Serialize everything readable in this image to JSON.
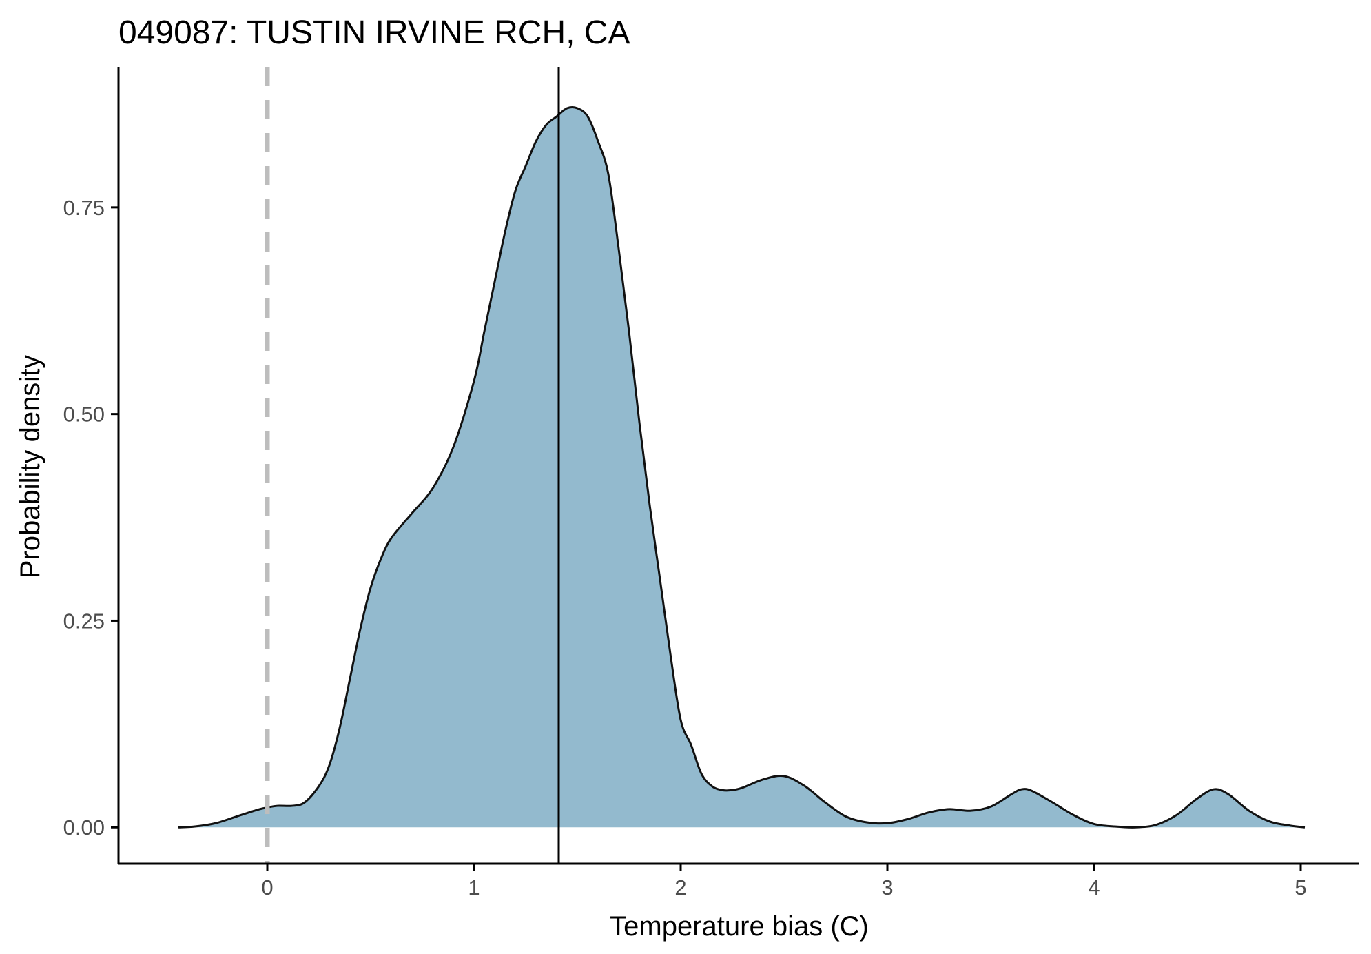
{
  "chart_data": {
    "type": "area",
    "title": "049087: TUSTIN IRVINE RCH, CA",
    "xlabel": "Temperature bias (C)",
    "ylabel": "Probability density",
    "xlim": [
      -0.72,
      5.28
    ],
    "ylim": [
      -0.044,
      0.92
    ],
    "x_ticks": [
      0,
      1,
      2,
      3,
      4,
      5
    ],
    "x_tick_labels": [
      "0",
      "1",
      "2",
      "3",
      "4",
      "5"
    ],
    "y_ticks": [
      0,
      0.25,
      0.5,
      0.75
    ],
    "y_tick_labels": [
      "0.00",
      "0.25",
      "0.50",
      "0.75"
    ],
    "grid": false,
    "legend": "none",
    "reference_line_x": 0,
    "mean_line_x": 1.41,
    "series": [
      {
        "x": [
          -0.43,
          -0.35,
          -0.25,
          -0.15,
          -0.05,
          0.0,
          0.05,
          0.12,
          0.18,
          0.25,
          0.3,
          0.35,
          0.4,
          0.45,
          0.5,
          0.55,
          0.6,
          0.7,
          0.8,
          0.9,
          1.0,
          1.05,
          1.1,
          1.15,
          1.2,
          1.25,
          1.3,
          1.35,
          1.4,
          1.45,
          1.5,
          1.55,
          1.6,
          1.65,
          1.7,
          1.75,
          1.8,
          1.85,
          1.9,
          1.95,
          2.0,
          2.05,
          2.1,
          2.15,
          2.2,
          2.25,
          2.3,
          2.4,
          2.5,
          2.6,
          2.7,
          2.8,
          2.9,
          3.0,
          3.1,
          3.2,
          3.3,
          3.4,
          3.5,
          3.6,
          3.65,
          3.7,
          3.8,
          3.9,
          4.0,
          4.1,
          4.2,
          4.3,
          4.4,
          4.5,
          4.58,
          4.65,
          4.75,
          4.85,
          4.95,
          5.02
        ],
        "y": [
          0.0,
          0.001,
          0.005,
          0.013,
          0.021,
          0.024,
          0.026,
          0.026,
          0.03,
          0.05,
          0.075,
          0.12,
          0.18,
          0.24,
          0.29,
          0.325,
          0.35,
          0.38,
          0.41,
          0.46,
          0.54,
          0.6,
          0.66,
          0.72,
          0.77,
          0.8,
          0.83,
          0.85,
          0.86,
          0.87,
          0.87,
          0.86,
          0.83,
          0.79,
          0.7,
          0.6,
          0.49,
          0.39,
          0.3,
          0.21,
          0.13,
          0.1,
          0.065,
          0.05,
          0.045,
          0.045,
          0.048,
          0.058,
          0.062,
          0.05,
          0.03,
          0.013,
          0.006,
          0.005,
          0.01,
          0.018,
          0.022,
          0.02,
          0.025,
          0.04,
          0.046,
          0.044,
          0.03,
          0.015,
          0.004,
          0.001,
          0.0,
          0.003,
          0.015,
          0.035,
          0.046,
          0.04,
          0.02,
          0.007,
          0.002,
          0.0
        ]
      }
    ],
    "colors": {
      "fill": "#93bace",
      "outline": "#111111",
      "mean_line": "#000000",
      "reference_line": "#bdbdbd",
      "axis": "#000000"
    }
  }
}
